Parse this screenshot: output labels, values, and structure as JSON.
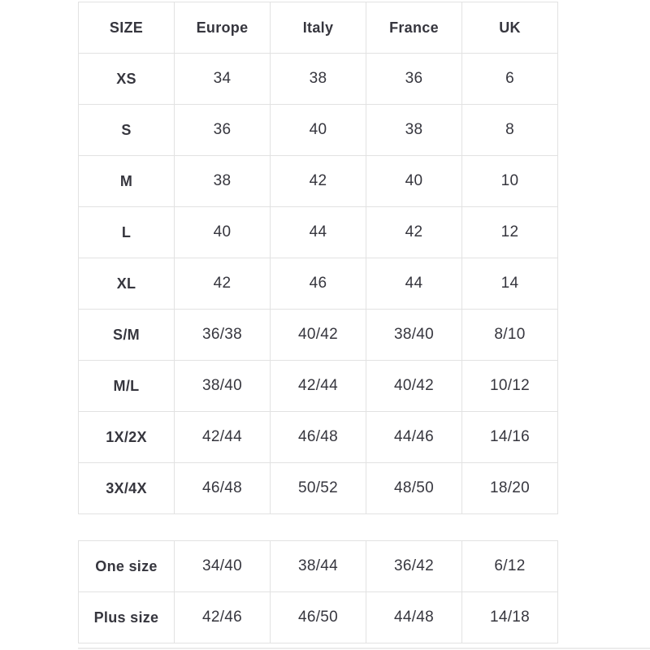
{
  "main_table": {
    "headers": [
      "SIZE",
      "Europe",
      "Italy",
      "France",
      "UK"
    ],
    "rows": [
      {
        "label": "XS",
        "values": [
          "34",
          "38",
          "36",
          "6"
        ]
      },
      {
        "label": "S",
        "values": [
          "36",
          "40",
          "38",
          "8"
        ]
      },
      {
        "label": "M",
        "values": [
          "38",
          "42",
          "40",
          "10"
        ]
      },
      {
        "label": "L",
        "values": [
          "40",
          "44",
          "42",
          "12"
        ]
      },
      {
        "label": "XL",
        "values": [
          "42",
          "46",
          "44",
          "14"
        ]
      },
      {
        "label": "S/M",
        "values": [
          "36/38",
          "40/42",
          "38/40",
          "8/10"
        ]
      },
      {
        "label": "M/L",
        "values": [
          "38/40",
          "42/44",
          "40/42",
          "10/12"
        ]
      },
      {
        "label": "1X/2X",
        "values": [
          "42/44",
          "46/48",
          "44/46",
          "14/16"
        ]
      },
      {
        "label": "3X/4X",
        "values": [
          "46/48",
          "50/52",
          "48/50",
          "18/20"
        ]
      }
    ]
  },
  "special_table": {
    "rows": [
      {
        "label": "One size",
        "values": [
          "34/40",
          "38/44",
          "36/42",
          "6/12"
        ]
      },
      {
        "label": "Plus size",
        "values": [
          "42/46",
          "46/50",
          "44/48",
          "14/18"
        ]
      }
    ]
  },
  "colors": {
    "border": "#e2e2e2",
    "text": "#36363e",
    "background": "#ffffff"
  }
}
